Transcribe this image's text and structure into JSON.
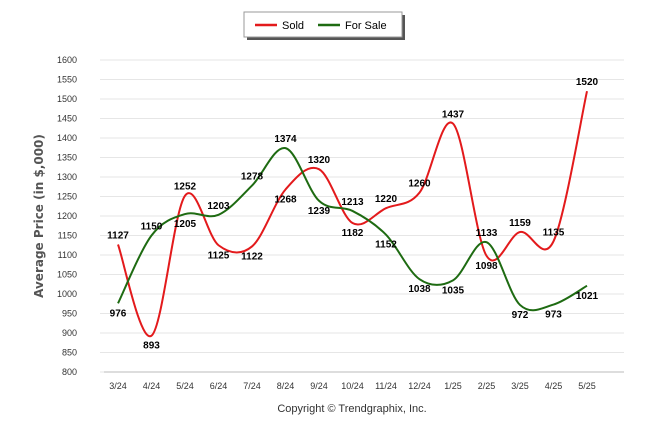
{
  "chart_data": {
    "type": "line",
    "ylabel": "Average Price (in $,000)",
    "ylim": [
      800,
      1600
    ],
    "ytick_step": 50,
    "grid": true,
    "legend_placement": "top-center",
    "categories": [
      "3/24",
      "4/24",
      "5/24",
      "6/24",
      "7/24",
      "8/24",
      "9/24",
      "10/24",
      "11/24",
      "12/24",
      "1/25",
      "2/25",
      "3/25",
      "4/25",
      "5/25"
    ],
    "series": [
      {
        "name": "Sold",
        "color": "#e31a1c",
        "values": [
          1127,
          893,
          1252,
          1125,
          1122,
          1268,
          1320,
          1182,
          1220,
          1260,
          1437,
          1098,
          1159,
          1135,
          1520
        ]
      },
      {
        "name": "For Sale",
        "color": "#1e6b12",
        "values": [
          976,
          1150,
          1205,
          1203,
          1278,
          1374,
          1239,
          1213,
          1152,
          1038,
          1035,
          1133,
          972,
          973,
          1021
        ]
      }
    ],
    "credit": "Copyright © Trendgraphix, Inc."
  }
}
